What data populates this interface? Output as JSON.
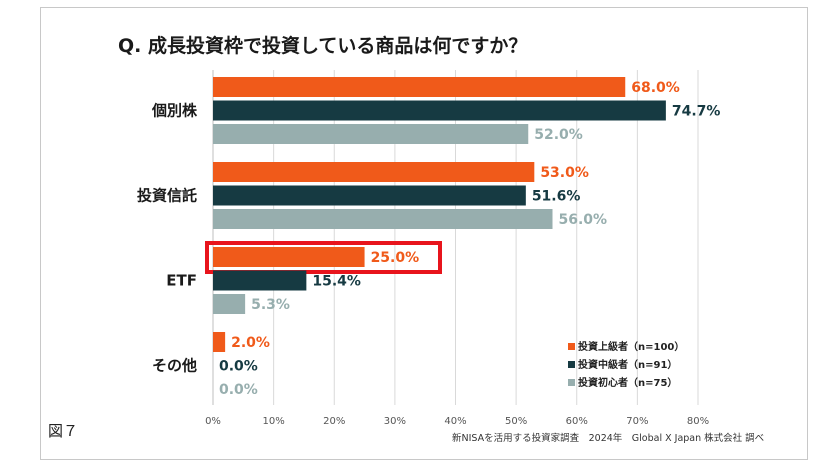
{
  "figure_label": "図７",
  "source_note": "新NISAを活用する投資家調査　2024年　Global X Japan 株式会社 調べ",
  "chart_data": {
    "type": "bar",
    "orientation": "horizontal",
    "title": "Q. 成長投資枠で投資している商品は何ですか？",
    "categories": [
      "個別株",
      "投資信託",
      "ETF",
      "その他"
    ],
    "series": [
      {
        "name": "投資上級者（n=100）",
        "color": "#f05a1a",
        "values": [
          68.0,
          53.0,
          25.0,
          2.0
        ],
        "labels": [
          "68.0%",
          "53.0%",
          "25.0%",
          "2.0%"
        ]
      },
      {
        "name": "投資中級者（n=91）",
        "color": "#163a42",
        "values": [
          74.7,
          51.6,
          15.4,
          0.0
        ],
        "labels": [
          "74.7%",
          "51.6%",
          "15.4%",
          "0.0%"
        ]
      },
      {
        "name": "投資初心者（n=75）",
        "color": "#97aeae",
        "values": [
          52.0,
          56.0,
          5.3,
          0.0
        ],
        "labels": [
          "52.0%",
          "56.0%",
          "5.3%",
          "0.0%"
        ]
      }
    ],
    "xlim": [
      0,
      80
    ],
    "ticks": [
      0,
      10,
      20,
      30,
      40,
      50,
      60,
      70,
      80
    ],
    "tick_labels": [
      "0%",
      "10%",
      "20%",
      "30%",
      "40%",
      "50%",
      "60%",
      "70%",
      "80%"
    ],
    "grid": true,
    "legend_position": "bottom-right",
    "highlight": {
      "category": "ETF",
      "series": "投資上級者（n=100）",
      "color": "#e8141c"
    }
  }
}
